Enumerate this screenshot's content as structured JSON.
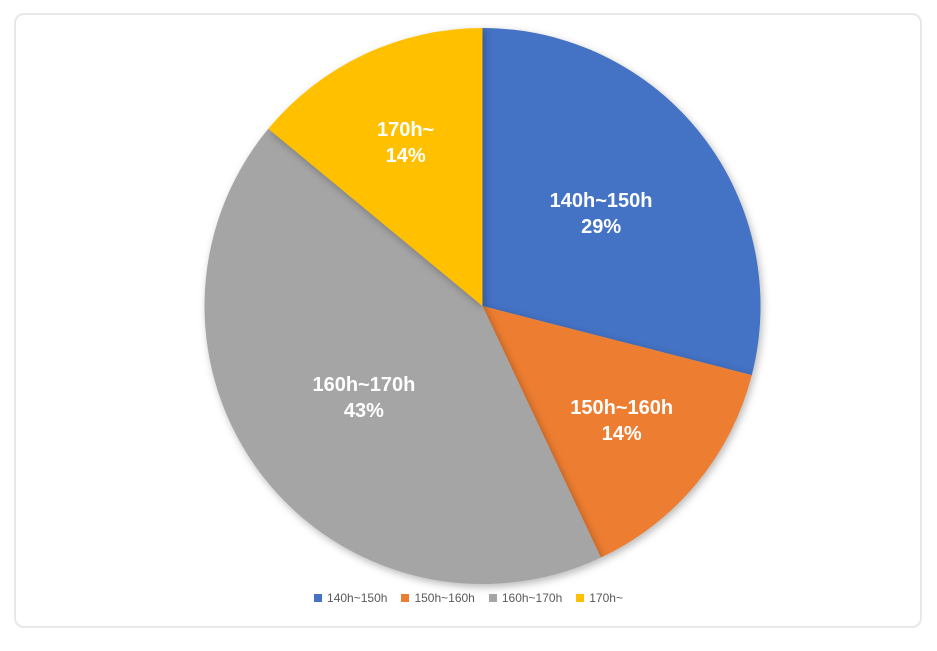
{
  "page": {
    "background": "#FFFFFF",
    "frame_border_color": "#E8E8E8"
  },
  "chart_data": {
    "type": "pie",
    "categories": [
      "140h~150h",
      "150h~160h",
      "160h~170h",
      "170h~"
    ],
    "values": [
      29,
      14,
      43,
      14
    ],
    "percent_labels": [
      "29%",
      "14%",
      "43%",
      "14%"
    ],
    "colors": [
      "#4472C4",
      "#ED7D31",
      "#A5A5A5",
      "#FFC000"
    ],
    "start_angle_deg": 0,
    "direction": "clockwise",
    "label_text_color": "#FFFFFF",
    "legend": {
      "position": "bottom",
      "text_color": "#595959",
      "items": [
        {
          "label": "140h~150h",
          "color": "#4472C4"
        },
        {
          "label": "150h~160h",
          "color": "#ED7D31"
        },
        {
          "label": "160h~170h",
          "color": "#A5A5A5"
        },
        {
          "label": "170h~",
          "color": "#FFC000"
        }
      ]
    }
  }
}
